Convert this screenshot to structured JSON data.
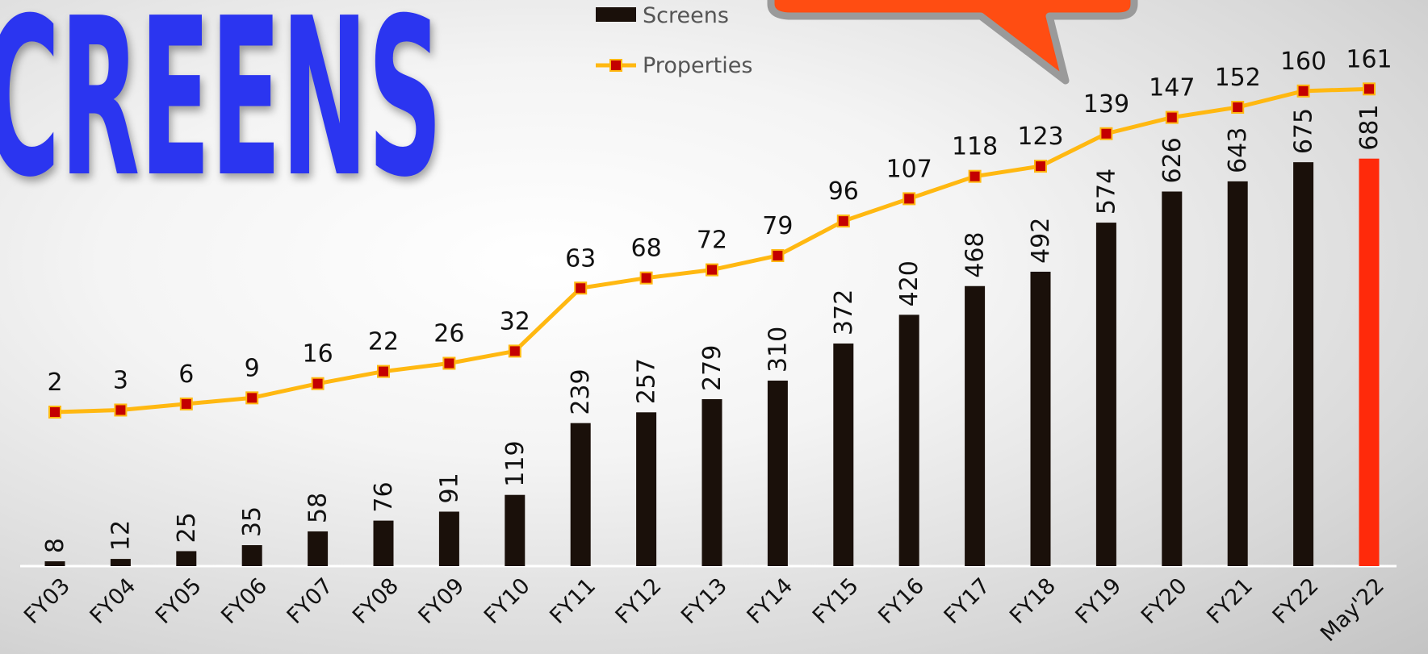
{
  "title": "SCREENS",
  "chart_data": {
    "type": "bar",
    "categories": [
      "FY03",
      "FY04",
      "FY05",
      "FY06",
      "FY07",
      "FY08",
      "FY09",
      "FY10",
      "FY11",
      "FY12",
      "FY13",
      "FY14",
      "FY15",
      "FY16",
      "FY17",
      "FY18",
      "FY19",
      "FY20",
      "FY21",
      "FY22",
      "May'22"
    ],
    "series": [
      {
        "name": "Screens",
        "type": "bar",
        "color": "#1a100a",
        "highlight_color": "#ff2a0a",
        "values": [
          8,
          12,
          25,
          35,
          58,
          76,
          91,
          119,
          239,
          257,
          279,
          310,
          372,
          420,
          468,
          492,
          574,
          626,
          643,
          675,
          681
        ]
      },
      {
        "name": "Properties",
        "type": "line",
        "color": "#ffb811",
        "marker_color": "#c40000",
        "values": [
          2,
          3,
          6,
          9,
          16,
          22,
          26,
          32,
          63,
          68,
          72,
          79,
          96,
          107,
          118,
          123,
          139,
          147,
          152,
          160,
          161
        ]
      }
    ],
    "legend": "top-center",
    "grid": false
  }
}
